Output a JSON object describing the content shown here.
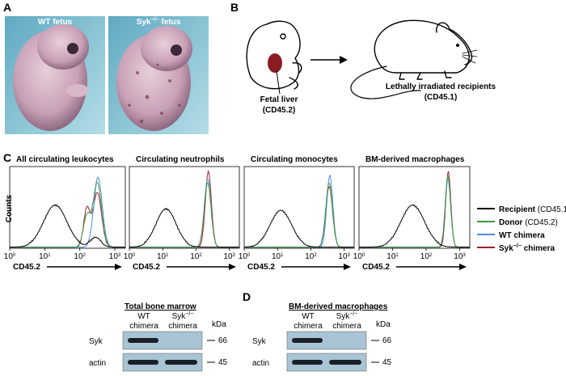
{
  "panel_a": {
    "label": "A",
    "captions": [
      {
        "text": "WT fetus"
      },
      {
        "text": "Syk",
        "sup": "−/−",
        "rest": " fetus"
      }
    ]
  },
  "panel_b": {
    "label": "B",
    "donor": [
      "Fetal liver",
      "(CD45.2)"
    ],
    "recipient": [
      "Lethally irradiated recipients",
      "(CD45.1)"
    ]
  },
  "panel_c": {
    "label": "C",
    "titles": [
      "All circulating leukocytes",
      "Circulating neutrophils",
      "Circulating monocytes",
      "BM-derived macrophages"
    ],
    "y_label": "Counts",
    "x_label": "CD45.2",
    "x_ticks": [
      {
        "base": "10",
        "exp": "0"
      },
      {
        "base": "10",
        "exp": "1"
      },
      {
        "base": "10",
        "exp": "2"
      },
      {
        "base": "10",
        "exp": "3"
      }
    ],
    "legend": [
      {
        "name": "Recipient",
        "note": " (CD45.1)",
        "color": "#000000"
      },
      {
        "name": "Donor",
        "note": " (CD45.2)",
        "color": "#3a9a3a"
      },
      {
        "name": "WT chimera",
        "color": "#4a8ee8"
      },
      {
        "name": "Syk",
        "sup": "−/−",
        "rest": " chimera",
        "color": "#a0202a"
      }
    ]
  },
  "panel_d": {
    "label": "D",
    "blots": [
      {
        "title": "Total bone marrow",
        "columns": [
          {
            "top": "WT",
            "bottom": "chimera"
          },
          {
            "top": "Syk",
            "sup": "−/−",
            "bottom": "chimera"
          }
        ],
        "unit": "kDa",
        "rows": [
          {
            "name": "Syk",
            "marker": "66"
          },
          {
            "name": "actin",
            "marker": "45"
          }
        ]
      },
      {
        "title": "BM-derived macrophages",
        "columns": [
          {
            "top": "WT",
            "bottom": "chimera"
          },
          {
            "top": "Syk",
            "sup": "−/−",
            "bottom": "chimera"
          }
        ],
        "unit": "kDa",
        "rows": [
          {
            "name": "Syk",
            "marker": "66"
          },
          {
            "name": "actin",
            "marker": "45"
          }
        ]
      }
    ]
  }
}
